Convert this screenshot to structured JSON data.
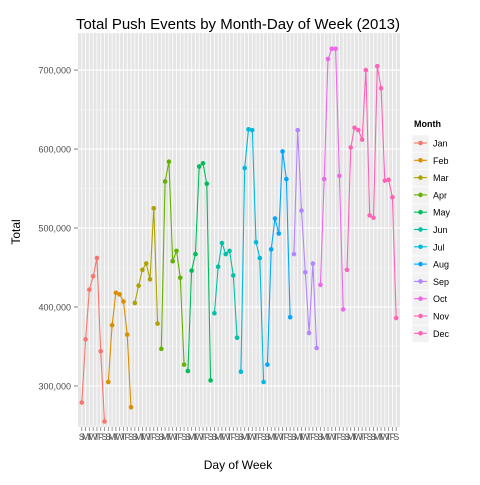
{
  "chart_data": {
    "type": "line",
    "title": "Total Push Events by Month-Day of Week (2013)",
    "xlabel": "Day of Week",
    "ylabel": "Total",
    "day_labels": [
      "S",
      "M",
      "T",
      "W",
      "T",
      "F",
      "S"
    ],
    "y_ticks": [
      300000,
      400000,
      500000,
      600000,
      700000
    ],
    "y_tick_labels": [
      "300,000",
      "400,000",
      "500,000",
      "600,000",
      "700,000"
    ],
    "ylim": [
      248000,
      747000
    ],
    "grid": true,
    "legend": {
      "title": "Month",
      "position": "right"
    },
    "series": [
      {
        "name": "Jan",
        "color": "#F8766D",
        "values": [
          279000,
          359000,
          422000,
          439000,
          462000,
          344000,
          255000
        ]
      },
      {
        "name": "Feb",
        "color": "#DB8E00",
        "values": [
          305000,
          377000,
          418000,
          416000,
          407000,
          365000,
          273000
        ]
      },
      {
        "name": "Mar",
        "color": "#AEA200",
        "values": [
          405000,
          427000,
          447000,
          455000,
          435000,
          525000,
          379000
        ]
      },
      {
        "name": "Apr",
        "color": "#64B200",
        "values": [
          347000,
          559000,
          584000,
          458000,
          471000,
          437000,
          327000
        ]
      },
      {
        "name": "May",
        "color": "#00BD5C",
        "values": [
          319000,
          446000,
          467000,
          578000,
          582000,
          556000,
          307000
        ]
      },
      {
        "name": "Jun",
        "color": "#00C1A7",
        "values": [
          392000,
          451000,
          481000,
          467000,
          471000,
          440000,
          361000
        ]
      },
      {
        "name": "Jul",
        "color": "#00BADE",
        "values": [
          318000,
          576000,
          625000,
          624000,
          482000,
          462000,
          305000
        ]
      },
      {
        "name": "Aug",
        "color": "#00A6FF",
        "values": [
          327000,
          473000,
          512000,
          493000,
          597000,
          562000,
          387000
        ]
      },
      {
        "name": "Sep",
        "color": "#B385FF",
        "values": [
          467000,
          624000,
          522000,
          444000,
          367000,
          455000,
          348000
        ]
      },
      {
        "name": "Oct",
        "color": "#EF67EB",
        "values": [
          428000,
          562000,
          714000,
          727000,
          727000,
          566000,
          397000
        ]
      },
      {
        "name": "Nov",
        "color": "#FF63B6",
        "values": [
          447000,
          602000,
          627000,
          624000,
          612000,
          700000,
          516000
        ]
      },
      {
        "name": "Dec",
        "color": "#FF63B6",
        "values": [
          513000,
          705000,
          677000,
          560000,
          561000,
          539000,
          386000
        ]
      }
    ]
  }
}
